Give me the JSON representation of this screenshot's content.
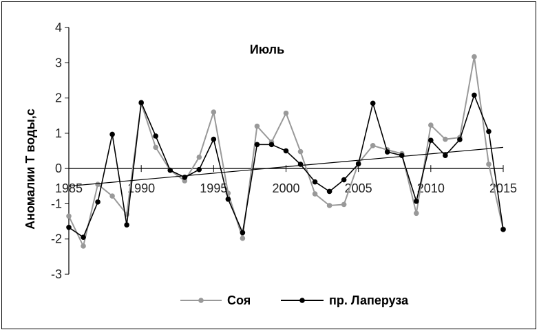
{
  "chart_data": {
    "type": "line",
    "title": "Июль",
    "ylabel": "Аномалии Т воды,с",
    "xlabel": "",
    "xlim": [
      1985,
      2015
    ],
    "ylim": [
      -3,
      4
    ],
    "xticks": [
      "1985",
      "1990",
      "1995",
      "2000",
      "2005",
      "2010",
      "2015"
    ],
    "yticks": [
      "-3",
      "-2",
      "-1",
      "0",
      "1",
      "2",
      "3",
      "4"
    ],
    "legend_position": "bottom",
    "grid": false,
    "x": [
      1985,
      1986,
      1987,
      1988,
      1989,
      1990,
      1991,
      1992,
      1993,
      1994,
      1995,
      1996,
      1997,
      1998,
      1999,
      2000,
      2001,
      2002,
      2003,
      2004,
      2005,
      2006,
      2007,
      2008,
      2009,
      2010,
      2011,
      2012,
      2013,
      2014,
      2015
    ],
    "series": [
      {
        "name": "Соя",
        "color": "#999999",
        "values": [
          -1.35,
          -2.2,
          -0.45,
          -0.78,
          -1.3,
          1.85,
          0.6,
          -0.05,
          -0.35,
          0.32,
          1.6,
          -0.7,
          -1.98,
          1.2,
          0.75,
          1.57,
          0.48,
          -0.72,
          -1.05,
          -1.02,
          0.15,
          0.65,
          0.53,
          0.42,
          -1.27,
          1.23,
          0.83,
          0.88,
          3.17,
          0.12,
          -1.72
        ]
      },
      {
        "name": "пр. Лаперуза",
        "color": "#000000",
        "values": [
          -1.67,
          -1.95,
          -0.95,
          0.97,
          -1.6,
          1.87,
          0.92,
          -0.05,
          -0.25,
          -0.03,
          0.83,
          -0.87,
          -1.82,
          0.68,
          0.68,
          0.5,
          0.12,
          -0.38,
          -0.65,
          -0.32,
          0.13,
          1.85,
          0.47,
          0.37,
          -0.93,
          0.8,
          0.37,
          0.82,
          2.08,
          1.05,
          -1.73
        ]
      }
    ],
    "trendline": {
      "x": [
        1985,
        2015
      ],
      "y": [
        -0.5,
        0.6
      ],
      "color": "#000000"
    }
  }
}
